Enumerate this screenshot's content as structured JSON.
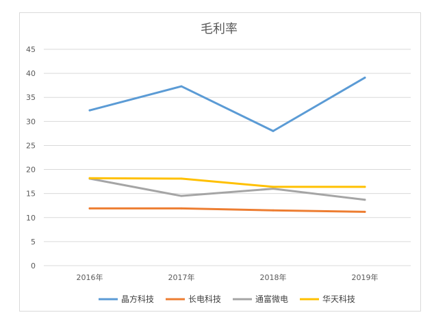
{
  "chart_data": {
    "type": "line",
    "title": "毛利率",
    "xlabel": "",
    "ylabel": "",
    "categories": [
      "2016年",
      "2017年",
      "2018年",
      "2019年"
    ],
    "ylim": [
      0,
      45
    ],
    "yticks": [
      0,
      5,
      10,
      15,
      20,
      25,
      30,
      35,
      40,
      45
    ],
    "grid": true,
    "legend_position": "bottom",
    "series": [
      {
        "name": "晶方科技",
        "color": "#5b9bd5",
        "values": [
          32.3,
          37.3,
          28.0,
          39.1
        ]
      },
      {
        "name": "长电科技",
        "color": "#ed7d31",
        "values": [
          11.9,
          11.9,
          11.5,
          11.2
        ]
      },
      {
        "name": "通富微电",
        "color": "#a5a5a5",
        "values": [
          18.1,
          14.5,
          16.0,
          13.7
        ]
      },
      {
        "name": "华天科技",
        "color": "#ffc000",
        "values": [
          18.2,
          18.1,
          16.4,
          16.4
        ]
      }
    ]
  }
}
